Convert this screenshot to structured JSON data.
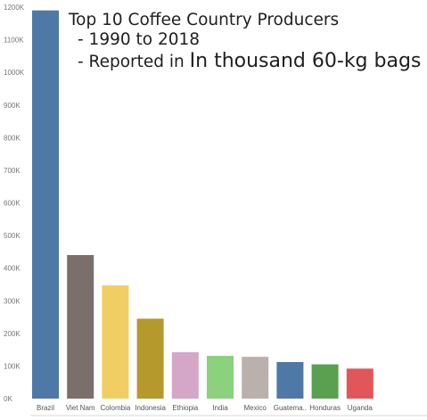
{
  "title": {
    "line1": "Top 10 Coffee Country Producers",
    "line2": "- 1990 to 2018",
    "line3_prefix": "- Reported in ",
    "line3_emphasis": "In thousand 60-kg bags"
  },
  "chart_data": {
    "type": "bar",
    "title": "Top 10 Coffee Country Producers - 1990 to 2018 - Reported in In thousand 60-kg bags",
    "xlabel": "",
    "ylabel": "",
    "ylim": [
      0,
      1200000
    ],
    "y_ticks": [
      0,
      100000,
      200000,
      300000,
      400000,
      500000,
      600000,
      700000,
      800000,
      900000,
      1000000,
      1100000,
      1200000
    ],
    "y_tick_labels": [
      "0K",
      "100K",
      "200K",
      "300K",
      "400K",
      "500K",
      "600K",
      "700K",
      "800K",
      "900K",
      "1000K",
      "1100K",
      "1200K"
    ],
    "grid": false,
    "categories": [
      "Brazil",
      "Viet Nam",
      "Colombia",
      "Indonesia",
      "Ethiopia",
      "India",
      "Mexico",
      "Guatema..",
      "Honduras",
      "Uganda"
    ],
    "values": [
      1190000,
      440000,
      347000,
      245000,
      142000,
      131000,
      128000,
      112000,
      105000,
      92000
    ],
    "colors": [
      "#4e79a7",
      "#7b6f6b",
      "#f1ce63",
      "#b6992d",
      "#d4a6c8",
      "#8cd17d",
      "#bab0ac",
      "#4e79a7",
      "#59a14f",
      "#e15759"
    ]
  }
}
